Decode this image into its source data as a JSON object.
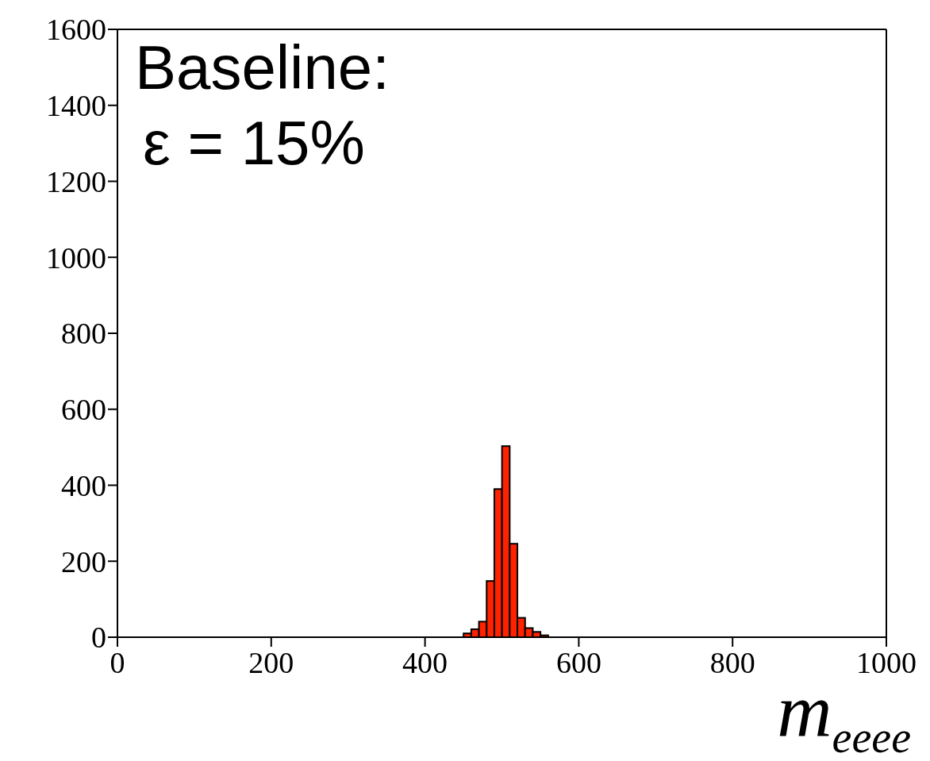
{
  "chart_data": {
    "type": "histogram",
    "bins": [
      400,
      410,
      420,
      430,
      440,
      450,
      460,
      470,
      480,
      490,
      500,
      510,
      520,
      530,
      540,
      550,
      560
    ],
    "values": [
      0,
      null,
      null,
      null,
      null,
      10,
      21,
      41,
      148,
      390,
      503,
      246,
      51,
      24,
      14,
      5
    ],
    "color": "#ff2200",
    "xlim": [
      0,
      1000
    ],
    "xticks": [
      0,
      200,
      400,
      600,
      800,
      1000
    ],
    "ylim": [
      0,
      1600
    ],
    "yticks": [
      0,
      200,
      400,
      600,
      800,
      1000,
      1200,
      1400,
      1600
    ],
    "xlabel": "m$_{eeee}$",
    "annotations": [
      "Baseline:",
      "ε = 15%"
    ],
    "grid": false,
    "legend": false
  }
}
